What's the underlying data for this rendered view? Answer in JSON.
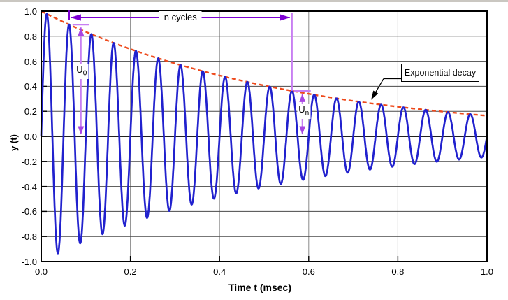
{
  "chart_data": {
    "type": "line",
    "title": "",
    "xlabel": "Time t (msec)",
    "ylabel": "y (t)",
    "xlim": [
      0,
      1
    ],
    "ylim": [
      -1,
      1
    ],
    "xtick_labels": [
      "0.0",
      "0.2",
      "0.4",
      "0.6",
      "0.8",
      "1.0"
    ],
    "ytick_labels": [
      "1.0",
      "0.8",
      "0.6",
      "0.4",
      "0.2",
      "0.0",
      "-0.2",
      "-0.4",
      "-0.6",
      "-0.8",
      "-1.0"
    ],
    "grid": true,
    "legend": "none",
    "series": [
      {
        "name": "damped oscillation",
        "formula": "y(t) = e^(-1.8 t) * sin(2*pi*20*t)",
        "amplitude": 1.0,
        "decay_per_msec": 1.8,
        "frequency_cycles_per_msec": 20,
        "color": "#2121ce",
        "style": "solid"
      },
      {
        "name": "exponential decay envelope",
        "formula": "y(t) = e^(-1.8 t)",
        "amplitude": 1.0,
        "decay_per_msec": 1.8,
        "color": "#ee4a1c",
        "style": "dashed"
      }
    ],
    "annotations": {
      "n_cycles": {
        "label": "n cycles",
        "t_start": 0.0623,
        "t_end": 0.5623,
        "arrow_y": 0.95
      },
      "u0": {
        "label": "U",
        "subscript": "0",
        "t": 0.089,
        "y_top": 0.8935,
        "y_bottom": 0
      },
      "un": {
        "label": "U",
        "subscript": "n",
        "t": 0.5858,
        "y_top": 0.3637,
        "y_bottom": 0
      },
      "decay_callout": {
        "label": "Exponential decay",
        "tip_t": 0.74
      }
    },
    "colors": {
      "wave": "#2121ce",
      "envelope": "#ee4a1c",
      "annotation_dark": "#7d00d2",
      "annotation_light": "#c87ff2",
      "annotation_head": "#a845e2",
      "grid_horizontal": "#4a4a4a",
      "grid_vertical": "#8a8a8a",
      "axis": "#000000"
    }
  }
}
